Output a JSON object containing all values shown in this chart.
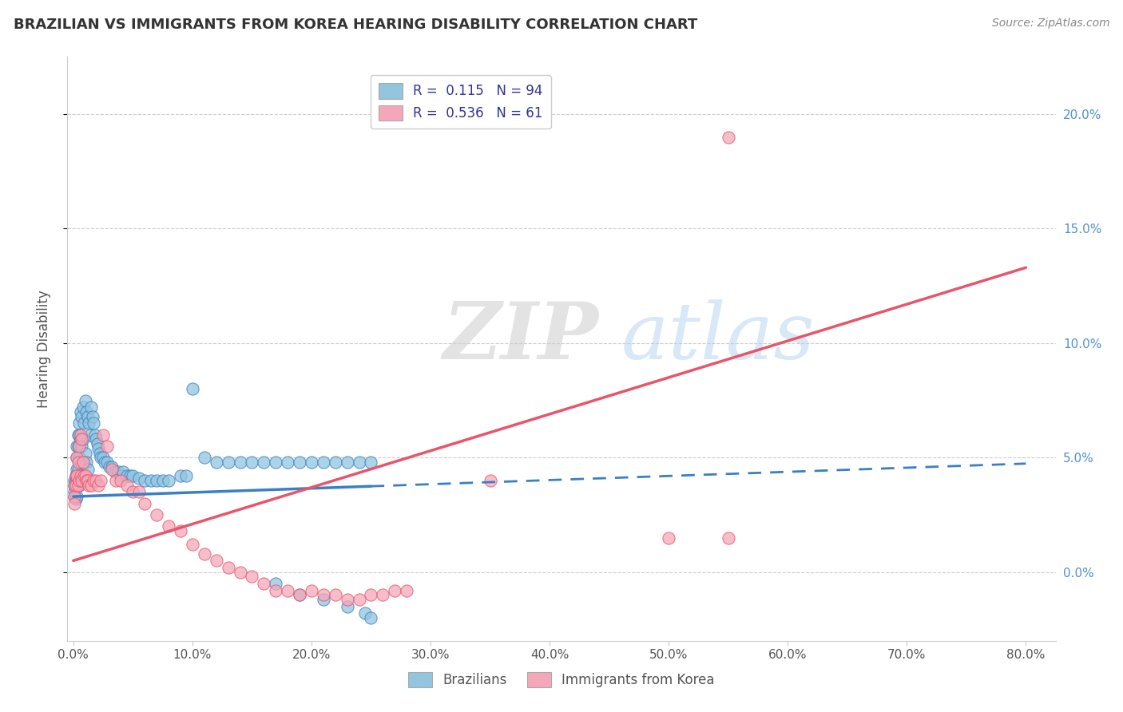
{
  "title": "BRAZILIAN VS IMMIGRANTS FROM KOREA HEARING DISABILITY CORRELATION CHART",
  "source": "Source: ZipAtlas.com",
  "ylabel": "Hearing Disability",
  "watermark_zip": "ZIP",
  "watermark_atlas": "atlas",
  "legend_label1": "Brazilians",
  "legend_label2": "Immigrants from Korea",
  "r1": 0.115,
  "n1": 94,
  "r2": 0.536,
  "n2": 61,
  "color_blue": "#92C5DE",
  "color_blue_line": "#3B7FC4",
  "color_pink": "#F4A7B9",
  "color_pink_line": "#E8556A",
  "xlim_min": -0.005,
  "xlim_max": 0.825,
  "ylim_min": -0.03,
  "ylim_max": 0.225,
  "blue_line_x0": 0.0,
  "blue_line_x_solid_end": 0.25,
  "blue_line_x_dashed_end": 0.8,
  "blue_line_y0": 0.033,
  "blue_line_slope": 0.018,
  "pink_line_x0": 0.0,
  "pink_line_x_end": 0.8,
  "pink_line_y0": 0.005,
  "pink_line_slope": 0.16,
  "xticks": [
    0.0,
    0.1,
    0.2,
    0.3,
    0.4,
    0.5,
    0.6,
    0.7,
    0.8
  ],
  "yticks": [
    0.0,
    0.05,
    0.1,
    0.15,
    0.2
  ],
  "blue_x": [
    0.001,
    0.001,
    0.001,
    0.001,
    0.002,
    0.002,
    0.002,
    0.002,
    0.003,
    0.003,
    0.003,
    0.003,
    0.003,
    0.003,
    0.004,
    0.004,
    0.004,
    0.004,
    0.005,
    0.005,
    0.005,
    0.005,
    0.005,
    0.006,
    0.006,
    0.006,
    0.006,
    0.007,
    0.007,
    0.007,
    0.008,
    0.008,
    0.008,
    0.009,
    0.009,
    0.01,
    0.01,
    0.011,
    0.011,
    0.012,
    0.012,
    0.013,
    0.014,
    0.015,
    0.016,
    0.017,
    0.018,
    0.019,
    0.02,
    0.021,
    0.022,
    0.023,
    0.025,
    0.026,
    0.028,
    0.03,
    0.032,
    0.035,
    0.038,
    0.04,
    0.042,
    0.045,
    0.048,
    0.05,
    0.055,
    0.06,
    0.065,
    0.07,
    0.075,
    0.08,
    0.09,
    0.095,
    0.1,
    0.11,
    0.12,
    0.13,
    0.14,
    0.15,
    0.16,
    0.17,
    0.18,
    0.19,
    0.2,
    0.21,
    0.22,
    0.23,
    0.24,
    0.25,
    0.17,
    0.19,
    0.21,
    0.23,
    0.245,
    0.25
  ],
  "blue_y": [
    0.04,
    0.038,
    0.035,
    0.033,
    0.042,
    0.04,
    0.038,
    0.032,
    0.055,
    0.05,
    0.045,
    0.04,
    0.038,
    0.033,
    0.06,
    0.055,
    0.045,
    0.038,
    0.065,
    0.06,
    0.05,
    0.042,
    0.038,
    0.07,
    0.058,
    0.048,
    0.04,
    0.068,
    0.055,
    0.042,
    0.072,
    0.058,
    0.042,
    0.065,
    0.048,
    0.075,
    0.052,
    0.07,
    0.048,
    0.068,
    0.045,
    0.065,
    0.06,
    0.072,
    0.068,
    0.065,
    0.06,
    0.058,
    0.056,
    0.054,
    0.052,
    0.05,
    0.05,
    0.048,
    0.048,
    0.046,
    0.046,
    0.044,
    0.044,
    0.042,
    0.044,
    0.042,
    0.042,
    0.042,
    0.041,
    0.04,
    0.04,
    0.04,
    0.04,
    0.04,
    0.042,
    0.042,
    0.08,
    0.05,
    0.048,
    0.048,
    0.048,
    0.048,
    0.048,
    0.048,
    0.048,
    0.048,
    0.048,
    0.048,
    0.048,
    0.048,
    0.048,
    0.048,
    -0.005,
    -0.01,
    -0.012,
    -0.015,
    -0.018,
    -0.02
  ],
  "pink_x": [
    0.001,
    0.001,
    0.001,
    0.002,
    0.002,
    0.003,
    0.003,
    0.004,
    0.004,
    0.005,
    0.005,
    0.006,
    0.006,
    0.007,
    0.007,
    0.008,
    0.009,
    0.01,
    0.011,
    0.012,
    0.013,
    0.015,
    0.017,
    0.019,
    0.021,
    0.023,
    0.025,
    0.028,
    0.032,
    0.036,
    0.04,
    0.045,
    0.05,
    0.055,
    0.06,
    0.07,
    0.08,
    0.09,
    0.1,
    0.11,
    0.12,
    0.13,
    0.14,
    0.15,
    0.16,
    0.17,
    0.18,
    0.19,
    0.2,
    0.21,
    0.22,
    0.23,
    0.24,
    0.25,
    0.26,
    0.27,
    0.28,
    0.35,
    0.5,
    0.55,
    0.55
  ],
  "pink_y": [
    0.038,
    0.033,
    0.03,
    0.042,
    0.038,
    0.05,
    0.042,
    0.048,
    0.038,
    0.055,
    0.04,
    0.06,
    0.042,
    0.058,
    0.04,
    0.048,
    0.042,
    0.042,
    0.04,
    0.04,
    0.038,
    0.038,
    0.04,
    0.04,
    0.038,
    0.04,
    0.06,
    0.055,
    0.045,
    0.04,
    0.04,
    0.038,
    0.035,
    0.035,
    0.03,
    0.025,
    0.02,
    0.018,
    0.012,
    0.008,
    0.005,
    0.002,
    0.0,
    -0.002,
    -0.005,
    -0.008,
    -0.008,
    -0.01,
    -0.008,
    -0.01,
    -0.01,
    -0.012,
    -0.012,
    -0.01,
    -0.01,
    -0.008,
    -0.008,
    0.04,
    0.015,
    0.015,
    0.19
  ]
}
